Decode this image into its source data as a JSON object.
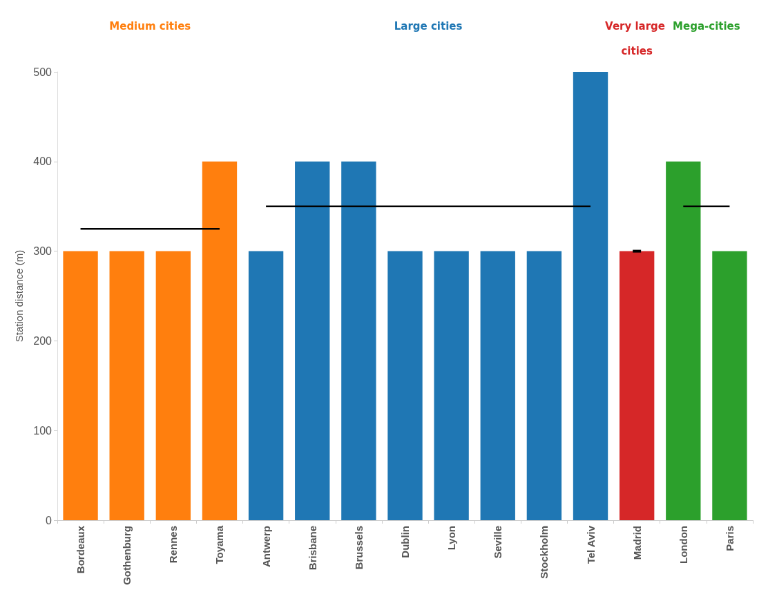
{
  "chart_data": {
    "type": "bar",
    "ylabel": "Station distance (m)",
    "categories": [
      "Bordeaux",
      "Gothenburg",
      "Rennes",
      "Toyama",
      "Antwerp",
      "Brisbane",
      "Brussels",
      "Dublin",
      "Lyon",
      "Seville",
      "Stockholm",
      "Tel Aviv",
      "Madrid",
      "London",
      "Paris"
    ],
    "series": [
      {
        "name": "Medium cities",
        "color": "#ff7f0e",
        "values": [
          300,
          300,
          300,
          400,
          null,
          null,
          null,
          null,
          null,
          null,
          null,
          null,
          null,
          null,
          null
        ]
      },
      {
        "name": "Large cities",
        "color": "#1f77b4",
        "values": [
          null,
          null,
          null,
          null,
          300,
          400,
          400,
          300,
          300,
          300,
          300,
          500,
          null,
          null,
          null
        ]
      },
      {
        "name": "Very large cities",
        "color": "#d62728",
        "values": [
          null,
          null,
          null,
          null,
          null,
          null,
          null,
          null,
          null,
          null,
          null,
          null,
          300,
          null,
          null
        ]
      },
      {
        "name": "Mega-cities",
        "color": "#2ca02c",
        "values": [
          null,
          null,
          null,
          null,
          null,
          null,
          null,
          null,
          null,
          null,
          null,
          null,
          null,
          400,
          300
        ]
      },
      {
        "type": "line",
        "color": "#000000",
        "values": [
          325,
          325,
          325,
          325,
          null,
          null,
          null,
          null,
          null,
          null,
          null,
          null,
          null,
          null,
          null
        ]
      },
      {
        "type": "line",
        "color": "#000000",
        "values": [
          null,
          null,
          null,
          null,
          350,
          350,
          350,
          350,
          350,
          350,
          350,
          350,
          null,
          null,
          null
        ]
      },
      {
        "type": "line",
        "color": "#000000",
        "marker": "square",
        "values": [
          null,
          null,
          null,
          null,
          null,
          null,
          null,
          null,
          null,
          null,
          null,
          null,
          300,
          null,
          null
        ]
      },
      {
        "type": "line",
        "color": "#000000",
        "values": [
          null,
          null,
          null,
          null,
          null,
          null,
          null,
          null,
          null,
          null,
          null,
          null,
          null,
          350,
          350
        ]
      }
    ],
    "ylim": [
      0,
      500
    ],
    "yticks": [
      0,
      100,
      200,
      300,
      400,
      500
    ],
    "grid": false,
    "legend": false
  }
}
